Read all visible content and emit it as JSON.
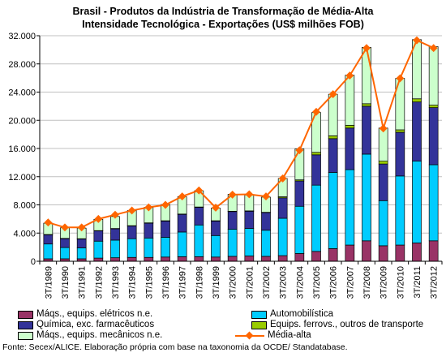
{
  "chart_data": {
    "type": "bar",
    "title": "Brasil - Produtos da Indústria de Transformação de Média-Alta\nIntensidade Tecnológica - Exportações (US$ milhões FOB)",
    "categories": [
      "3T/1989",
      "3T/1990",
      "3T/1991",
      "3T/1992",
      "3T/1993",
      "3T/1994",
      "3T/1995",
      "3T/1996",
      "3T/1997",
      "3T/1998",
      "3T/1999",
      "3T/2000",
      "3T/2001",
      "3T/2002",
      "3T/2003",
      "3T/2004",
      "3T/2005",
      "3T/2006",
      "3T/2007",
      "3T/2008",
      "3T/2009",
      "3T/2010",
      "3T/2011",
      "3T/2012"
    ],
    "yticks": [
      "0",
      "4.000",
      "8.000",
      "12.000",
      "16.000",
      "20.000",
      "24.000",
      "28.000",
      "32.000"
    ],
    "ylim": [
      0,
      32000
    ],
    "grid": true,
    "legend_position": "bottom",
    "series": [
      {
        "name": "Máqs., equips. elétricos n.e.",
        "kind": "bar",
        "color": "#993366",
        "values": [
          350,
          350,
          350,
          450,
          500,
          550,
          550,
          600,
          650,
          650,
          600,
          700,
          750,
          700,
          800,
          1100,
          1400,
          1800,
          2300,
          2900,
          2200,
          2300,
          2600,
          2900
        ]
      },
      {
        "name": "Automobilística",
        "kind": "bar",
        "color": "#00CCFF",
        "values": [
          2100,
          1600,
          1550,
          2400,
          2500,
          2650,
          2750,
          2800,
          3500,
          4500,
          3050,
          3850,
          3900,
          3700,
          5300,
          6700,
          9400,
          10800,
          10700,
          12300,
          6400,
          9800,
          11600,
          10800
        ]
      },
      {
        "name": "Química, exc. farmacêuticos",
        "kind": "bar",
        "color": "#333399",
        "values": [
          1300,
          1250,
          1250,
          1450,
          1600,
          1800,
          2100,
          2300,
          2500,
          2500,
          2050,
          2500,
          2450,
          2500,
          2900,
          3600,
          4300,
          4800,
          5900,
          6800,
          5200,
          6200,
          8400,
          8100
        ]
      },
      {
        "name": "Equips. ferrovs., outros de transporte",
        "kind": "bar",
        "color": "#99CC00",
        "values": [
          50,
          50,
          50,
          50,
          50,
          50,
          50,
          50,
          50,
          50,
          50,
          50,
          50,
          50,
          150,
          150,
          350,
          400,
          400,
          350,
          400,
          350,
          450,
          350
        ]
      },
      {
        "name": "Máqs., equips. mecânicos n.e.",
        "kind": "bar",
        "color": "#CCFFCC",
        "values": [
          1600,
          1500,
          1500,
          1600,
          1700,
          2150,
          2200,
          2300,
          2450,
          2300,
          1800,
          2400,
          2250,
          2150,
          2600,
          4400,
          5650,
          5900,
          7100,
          8000,
          4700,
          7300,
          8400,
          8300
        ]
      },
      {
        "name": "Média-alta",
        "kind": "line",
        "color": "#FF6600",
        "values": [
          5500,
          4800,
          4800,
          6000,
          6600,
          7200,
          7650,
          8000,
          9200,
          10050,
          7600,
          9450,
          9500,
          9200,
          11750,
          15750,
          21200,
          23700,
          26350,
          30250,
          18850,
          25950,
          31350,
          30250
        ]
      }
    ]
  },
  "footnote": "Fonte: Secex/ALICE. Elaboração própria com base na taxonomia da OCDE/ Standatabase."
}
